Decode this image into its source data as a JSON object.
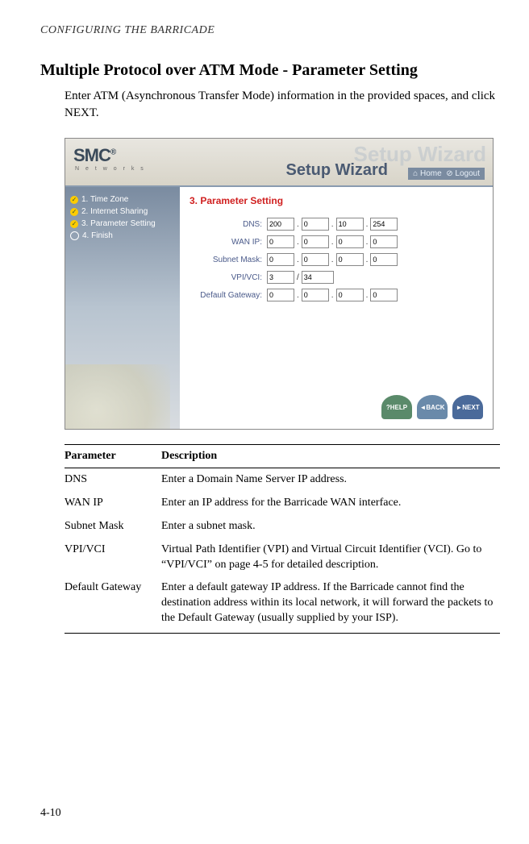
{
  "header": "CONFIGURING THE BARRICADE",
  "title": "Multiple Protocol over ATM Mode - Parameter Setting",
  "intro": "Enter ATM (Asynchronous Transfer Mode) information in the provided spaces, and click NEXT.",
  "screenshot": {
    "logo": "SMC",
    "logo_sup": "®",
    "networks": "N e t w o r k s",
    "wizard_bg": "Setup Wizard",
    "wizard": "Setup Wizard",
    "home": "Home",
    "logout": "Logout",
    "sidebar": [
      {
        "check": true,
        "label": "1. Time Zone"
      },
      {
        "check": true,
        "label": "2. Internet Sharing"
      },
      {
        "check": true,
        "label": "3. Parameter Setting"
      },
      {
        "check": false,
        "label": "4. Finish"
      }
    ],
    "section_title": "3. Parameter Setting",
    "rows": [
      {
        "label": "DNS:",
        "values": [
          "200",
          "0",
          "10",
          "254"
        ]
      },
      {
        "label": "WAN IP:",
        "values": [
          "0",
          "0",
          "0",
          "0"
        ]
      },
      {
        "label": "Subnet Mask:",
        "values": [
          "0",
          "0",
          "0",
          "0"
        ]
      },
      {
        "label": "VPI/VCI:",
        "vpi": "3",
        "vci": "34"
      },
      {
        "label": "Default Gateway:",
        "values": [
          "0",
          "0",
          "0",
          "0"
        ]
      }
    ],
    "buttons": {
      "help": "HELP",
      "back": "BACK",
      "next": "NEXT"
    }
  },
  "table": {
    "headers": [
      "Parameter",
      "Description"
    ],
    "rows": [
      [
        "DNS",
        "Enter a Domain Name Server IP address."
      ],
      [
        "WAN IP",
        "Enter an IP address for the Barricade WAN interface."
      ],
      [
        "Subnet Mask",
        "Enter a subnet mask."
      ],
      [
        "VPI/VCI",
        "Virtual Path Identifier (VPI) and Virtual Circuit Identifier (VCI). Go to “VPI/VCI” on page 4-5 for detailed description."
      ],
      [
        "Default Gateway",
        "Enter a default gateway IP address. If the Barricade cannot find the destination address within its local network, it will forward the packets to the Default Gateway (usually supplied by your ISP)."
      ]
    ]
  },
  "page_num": "4-10"
}
